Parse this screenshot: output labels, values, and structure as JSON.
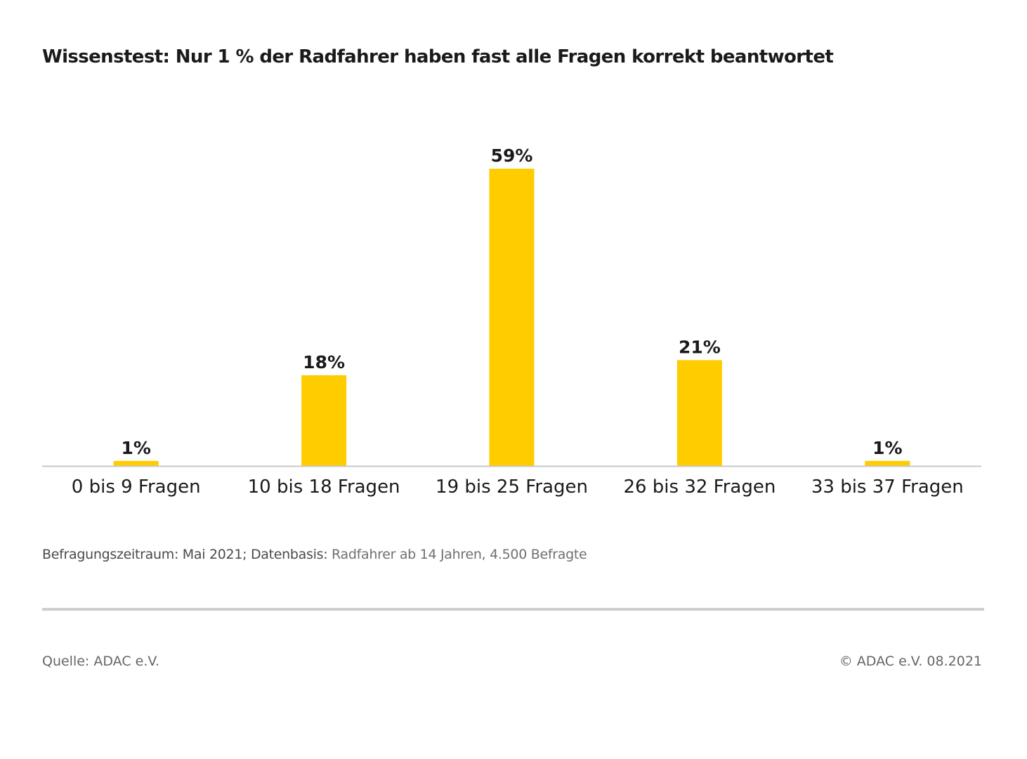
{
  "chart_data": {
    "type": "bar",
    "title": "Wissenstest: Nur 1 % der Radfahrer haben fast alle Fragen korrekt beantwortet",
    "categories": [
      "0 bis 9 Fragen",
      "10 bis 18 Fragen",
      "19 bis 25 Fragen",
      "26 bis 32 Fragen",
      "33 bis 37 Fragen"
    ],
    "values": [
      1,
      18,
      59,
      21,
      1
    ],
    "value_labels": [
      "1%",
      "18%",
      "59%",
      "21%",
      "1%"
    ],
    "xlabel": "",
    "ylabel": "",
    "ylim": [
      0,
      59
    ],
    "grid": false,
    "bar_color": "#FFCC00"
  },
  "footnote": {
    "dark": "Befragungszeitraum: Mai 2021; Datenbasis:",
    "light": "Radfahrer ab 14 Jahren, 4.500 Befragte"
  },
  "source": "Quelle: ADAC e.V.",
  "copyright": "© ADAC e.V. 08.2021"
}
